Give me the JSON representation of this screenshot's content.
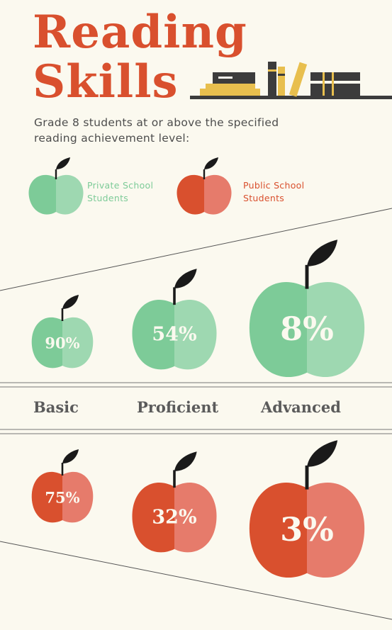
{
  "title_line1": "Reading",
  "title_line2": "Skills",
  "subtitle": "Grade 8 students at or above the specified reading achievement level:",
  "legend": {
    "private": "Private School Students",
    "public": "Public School Students"
  },
  "colors": {
    "title": "#d9502e",
    "private_dark": "#7dcb98",
    "private_light": "#9ed8b1",
    "public_dark": "#d9502e",
    "public_light": "#e67b6b",
    "book_yellow": "#e8bf4e",
    "book_dark": "#3c3c3c"
  },
  "chart_data": {
    "type": "bubble",
    "categories": [
      "Basic",
      "Proficient",
      "Advanced"
    ],
    "series": [
      {
        "name": "Private School Students",
        "values": [
          90,
          54,
          8
        ],
        "labels": [
          "90%",
          "54%",
          "8%"
        ]
      },
      {
        "name": "Public School Students",
        "values": [
          75,
          32,
          3
        ],
        "labels": [
          "75%",
          "32%",
          "3%"
        ]
      }
    ]
  }
}
